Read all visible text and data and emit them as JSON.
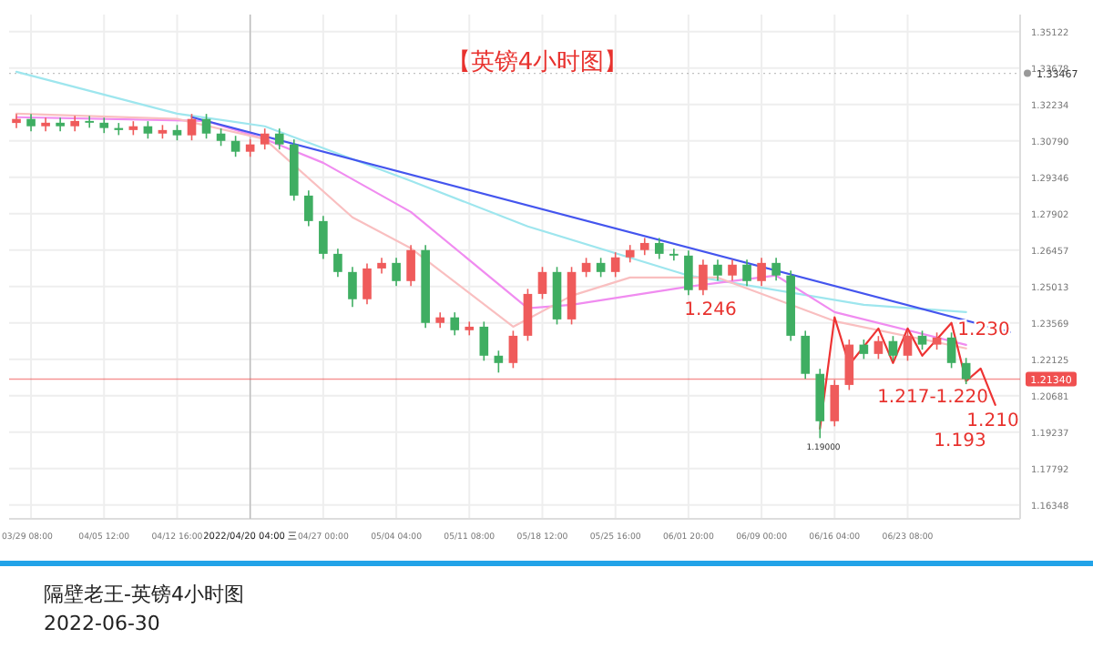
{
  "chart_data": {
    "type": "candlestick",
    "title": "【英镑4小时图】",
    "categories": [
      null,
      "03/29 08:00",
      null,
      null,
      null,
      null,
      "04/05 12:00",
      null,
      null,
      null,
      null,
      "04/12 16:00",
      null,
      null,
      null,
      null,
      "2022/04/20 04:00 三",
      null,
      null,
      null,
      null,
      "04/27 00:00",
      null,
      null,
      null,
      null,
      "05/04 04:00",
      null,
      null,
      null,
      null,
      "05/11 08:00",
      null,
      null,
      null,
      null,
      "05/18 12:00",
      null,
      null,
      null,
      null,
      "05/25 16:00",
      null,
      null,
      null,
      null,
      "06/01 20:00",
      null,
      null,
      null,
      null,
      "06/09 00:00",
      null,
      null,
      null,
      null,
      "06/16 04:00",
      null,
      null,
      null,
      null,
      "06/23 08:00",
      null,
      null,
      null,
      null,
      null,
      null,
      null
    ],
    "ohlc": [
      [
        1.315,
        1.3186,
        1.313,
        1.3166
      ],
      [
        1.3166,
        1.3186,
        1.3117,
        1.3137
      ],
      [
        1.3137,
        1.3171,
        1.3117,
        1.3151
      ],
      [
        1.3151,
        1.3171,
        1.3117,
        1.3137
      ],
      [
        1.3137,
        1.3178,
        1.3117,
        1.3158
      ],
      [
        1.3158,
        1.3178,
        1.3131,
        1.3151
      ],
      [
        1.3151,
        1.3171,
        1.311,
        1.313
      ],
      [
        1.313,
        1.315,
        1.3102,
        1.3122
      ],
      [
        1.3122,
        1.3157,
        1.3102,
        1.3137
      ],
      [
        1.3137,
        1.3157,
        1.3088,
        1.3108
      ],
      [
        1.3108,
        1.3142,
        1.3088,
        1.3122
      ],
      [
        1.3122,
        1.3142,
        1.3081,
        1.3101
      ],
      [
        1.3101,
        1.3186,
        1.3081,
        1.3166
      ],
      [
        1.3166,
        1.3186,
        1.3088,
        1.3108
      ],
      [
        1.3108,
        1.3128,
        1.3059,
        1.3079
      ],
      [
        1.3079,
        1.3099,
        1.3016,
        1.3036
      ],
      [
        1.3036,
        1.3085,
        1.3016,
        1.3065
      ],
      [
        1.3065,
        1.3128,
        1.3045,
        1.3108
      ],
      [
        1.3108,
        1.3128,
        1.3045,
        1.3065
      ],
      [
        1.3065,
        1.3085,
        1.2842,
        1.2862
      ],
      [
        1.2862,
        1.2882,
        1.2741,
        1.2761
      ],
      [
        1.2761,
        1.2781,
        1.2611,
        1.2631
      ],
      [
        1.2631,
        1.2651,
        1.2539,
        1.2559
      ],
      [
        1.2559,
        1.2579,
        1.242,
        1.2451
      ],
      [
        1.2451,
        1.2593,
        1.2431,
        1.2573
      ],
      [
        1.2573,
        1.2615,
        1.2553,
        1.2595
      ],
      [
        1.2595,
        1.2615,
        1.2503,
        1.2523
      ],
      [
        1.2523,
        1.2666,
        1.2503,
        1.2646
      ],
      [
        1.2646,
        1.2666,
        1.2337,
        1.2357
      ],
      [
        1.2357,
        1.2399,
        1.2337,
        1.2379
      ],
      [
        1.2379,
        1.2399,
        1.2308,
        1.2328
      ],
      [
        1.2328,
        1.2362,
        1.2308,
        1.2342
      ],
      [
        1.2342,
        1.2362,
        1.2207,
        1.2227
      ],
      [
        1.2227,
        1.2247,
        1.216,
        1.2198
      ],
      [
        1.2198,
        1.2326,
        1.2178,
        1.2306
      ],
      [
        1.2306,
        1.2492,
        1.2286,
        1.2472
      ],
      [
        1.2472,
        1.2579,
        1.2452,
        1.2559
      ],
      [
        1.2559,
        1.2579,
        1.2351,
        1.2371
      ],
      [
        1.2371,
        1.2579,
        1.2351,
        1.2559
      ],
      [
        1.2559,
        1.2615,
        1.2539,
        1.2595
      ],
      [
        1.2595,
        1.2615,
        1.2539,
        1.2559
      ],
      [
        1.2559,
        1.2637,
        1.2539,
        1.2617
      ],
      [
        1.2617,
        1.2666,
        1.2597,
        1.2646
      ],
      [
        1.2646,
        1.2694,
        1.2626,
        1.2674
      ],
      [
        1.2674,
        1.2694,
        1.2611,
        1.2631
      ],
      [
        1.2631,
        1.2651,
        1.2604,
        1.2624
      ],
      [
        1.2624,
        1.2644,
        1.2467,
        1.2487
      ],
      [
        1.2487,
        1.2608,
        1.2467,
        1.2588
      ],
      [
        1.2588,
        1.2608,
        1.2525,
        1.2545
      ],
      [
        1.2545,
        1.2608,
        1.2525,
        1.2588
      ],
      [
        1.2588,
        1.2608,
        1.2503,
        1.2523
      ],
      [
        1.2523,
        1.2615,
        1.2503,
        1.2595
      ],
      [
        1.2595,
        1.2615,
        1.2525,
        1.2545
      ],
      [
        1.2545,
        1.2565,
        1.2286,
        1.2306
      ],
      [
        1.2306,
        1.2326,
        1.2135,
        1.2155
      ],
      [
        1.2155,
        1.2175,
        1.19,
        1.1967
      ],
      [
        1.1967,
        1.2131,
        1.1947,
        1.2111
      ],
      [
        1.2111,
        1.2291,
        1.2091,
        1.2271
      ],
      [
        1.2271,
        1.2291,
        1.2214,
        1.2234
      ],
      [
        1.2234,
        1.2305,
        1.2214,
        1.2285
      ],
      [
        1.2285,
        1.2305,
        1.2207,
        1.2227
      ],
      [
        1.2227,
        1.2326,
        1.2207,
        1.2306
      ],
      [
        1.2306,
        1.2326,
        1.2251,
        1.2271
      ],
      [
        1.2271,
        1.2319,
        1.2251,
        1.2299
      ],
      [
        1.2299,
        1.2319,
        1.2178,
        1.2198
      ],
      [
        1.2198,
        1.2218,
        1.2114,
        1.2134
      ],
      null,
      null,
      null
    ],
    "series": [
      {
        "type": "line",
        "color": "#9ee6ee",
        "values": [
          1.3353,
          null,
          null,
          null,
          null,
          null,
          null,
          null,
          null,
          null,
          null,
          1.3187,
          null,
          null,
          null,
          null,
          null,
          1.3137,
          null,
          null,
          null,
          null,
          null,
          null,
          null,
          null,
          null,
          1.292,
          null,
          null,
          null,
          null,
          null,
          null,
          null,
          1.274,
          null,
          null,
          null,
          null,
          null,
          null,
          null,
          null,
          null,
          null,
          1.2545,
          null,
          null,
          null,
          null,
          null,
          null,
          null,
          null,
          null,
          null,
          null,
          1.2429,
          null,
          null,
          null,
          null,
          null,
          null,
          1.24,
          null,
          null,
          null
        ]
      },
      {
        "type": "line",
        "color": "#f08cf0",
        "values": [
          1.3173,
          null,
          null,
          null,
          null,
          null,
          null,
          null,
          null,
          null,
          null,
          null,
          null,
          1.3158,
          null,
          null,
          null,
          1.3086,
          null,
          null,
          null,
          1.2992,
          null,
          null,
          null,
          null,
          null,
          1.2797,
          null,
          null,
          null,
          null,
          null,
          null,
          null,
          1.2415,
          null,
          null,
          1.2429,
          null,
          null,
          null,
          null,
          null,
          null,
          null,
          1.2501,
          null,
          null,
          null,
          null,
          null,
          1.2545,
          null,
          null,
          null,
          1.24,
          null,
          null,
          null,
          null,
          null,
          null,
          null,
          null,
          1.227,
          null,
          null,
          null
        ]
      },
      {
        "type": "line",
        "color": "#f9bfc0",
        "values": [
          1.3187,
          null,
          null,
          null,
          null,
          null,
          null,
          null,
          null,
          null,
          null,
          1.3166,
          null,
          null,
          null,
          null,
          null,
          1.3086,
          null,
          null,
          null,
          null,
          null,
          1.2776,
          null,
          null,
          null,
          1.2653,
          null,
          null,
          null,
          null,
          null,
          null,
          1.2342,
          null,
          null,
          null,
          1.2465,
          null,
          null,
          null,
          1.2537,
          null,
          null,
          null,
          null,
          null,
          1.2537,
          null,
          null,
          null,
          1.2451,
          null,
          null,
          null,
          1.2364,
          null,
          null,
          null,
          null,
          null,
          null,
          null,
          null,
          1.2256,
          null,
          null,
          null
        ]
      },
      {
        "type": "line",
        "color": "#4455ee",
        "values": [
          null,
          null,
          null,
          null,
          null,
          null,
          null,
          null,
          null,
          null,
          null,
          null,
          1.3173,
          null,
          null,
          null,
          null,
          null,
          null,
          null,
          null,
          null,
          null,
          null,
          null,
          null,
          null,
          null,
          null,
          null,
          null,
          null,
          null,
          null,
          null,
          null,
          null,
          null,
          null,
          null,
          null,
          null,
          null,
          null,
          null,
          null,
          null,
          null,
          null,
          null,
          null,
          null,
          null,
          null,
          null,
          null,
          null,
          null,
          null,
          null,
          null,
          null,
          null,
          null,
          null,
          null,
          null,
          null,
          1.2321
        ]
      },
      {
        "type": "line",
        "color": "#ee3333",
        "values": [
          null,
          null,
          null,
          null,
          null,
          null,
          null,
          null,
          null,
          null,
          null,
          null,
          null,
          null,
          null,
          null,
          null,
          null,
          null,
          null,
          null,
          null,
          null,
          null,
          null,
          null,
          null,
          null,
          null,
          null,
          null,
          null,
          null,
          null,
          null,
          null,
          null,
          null,
          null,
          null,
          null,
          null,
          null,
          null,
          null,
          null,
          null,
          null,
          null,
          null,
          null,
          null,
          null,
          null,
          null,
          1.1938,
          1.2379,
          1.2191,
          null,
          1.2335,
          1.2198,
          1.2335,
          1.2227,
          null,
          1.2357,
          1.2126,
          1.2176,
          1.2032,
          null
        ]
      }
    ],
    "ylim": [
      1.158,
      1.358
    ],
    "yticks": [
      1.16348,
      1.17792,
      1.19237,
      1.20681,
      1.22125,
      1.23569,
      1.25013,
      1.26457,
      1.27902,
      1.29346,
      {
        "value": 1.3079,
        "label": "1.30790"
      },
      1.32234,
      1.33678,
      1.35122
    ],
    "grid": true,
    "ref_lines": [
      {
        "axis": "y",
        "value": 1.2134,
        "label": "1.21340",
        "color": "#f05050"
      },
      {
        "axis": "y",
        "value": 1.33467,
        "label": "1.33467",
        "color": "#999999",
        "line_style": "dotted"
      }
    ],
    "annotations": [
      "1.246",
      "1.193",
      "1.217-1.220",
      "1.230",
      "1.210",
      "1.19000",
      "隔壁老王-英镑4小时图",
      "2022-06-30"
    ]
  }
}
